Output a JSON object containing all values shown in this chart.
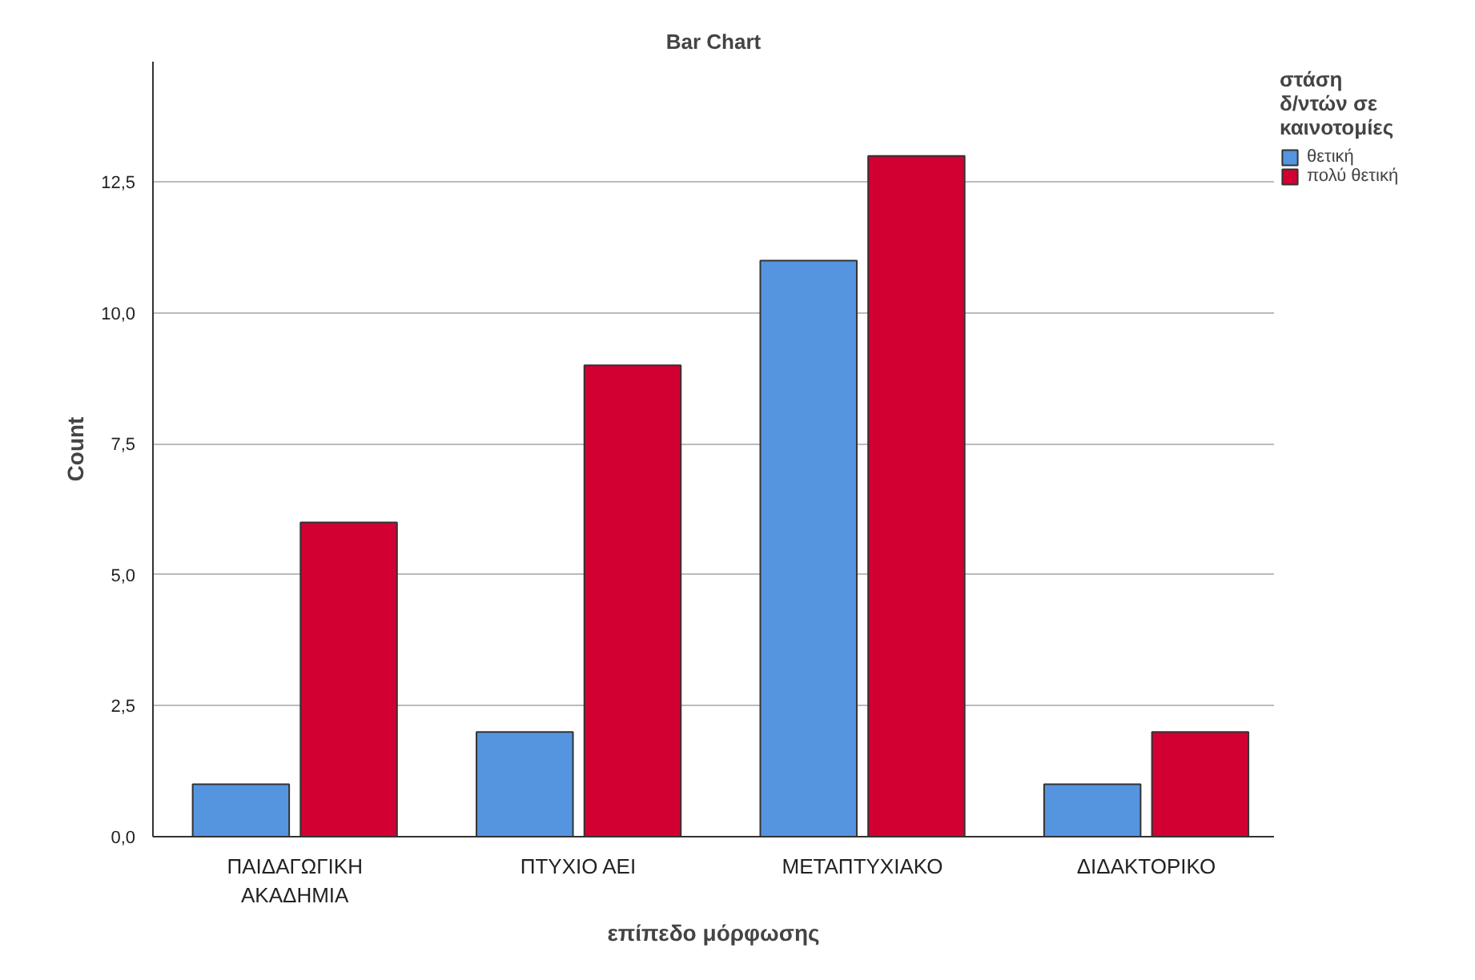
{
  "chart_data": {
    "type": "bar",
    "title": "Bar Chart",
    "xlabel": "επίπεδο μόρφωσης",
    "ylabel": "Count",
    "legend_title": "στάση δ/ντών σε καινοτομίες",
    "categories": [
      "ΠΑΙΔΑΓΩΓΙΚΗ ΑΚΑΔΗΜΙΑ",
      "ΠΤΥΧΙΟ ΑΕΙ",
      "ΜΕΤΑΠΤΥΧΙΑΚΟ",
      "ΔΙΔΑΚΤΟΡΙΚΟ"
    ],
    "series": [
      {
        "name": "θετική",
        "color": "#5595e0",
        "values": [
          1,
          2,
          11,
          1
        ]
      },
      {
        "name": "πολύ θετική",
        "color": "#d20032",
        "values": [
          6,
          9,
          13,
          2
        ]
      }
    ],
    "ylim": [
      0,
      14.8
    ],
    "yticks": [
      {
        "value": 0,
        "label": "0,0"
      },
      {
        "value": 2.5,
        "label": "2,5"
      },
      {
        "value": 5,
        "label": "5,0"
      },
      {
        "value": 7.5,
        "label": "7,5"
      },
      {
        "value": 10,
        "label": "10,0"
      },
      {
        "value": 12.5,
        "label": "12,5"
      }
    ],
    "grid": "y",
    "legend": "top right"
  }
}
